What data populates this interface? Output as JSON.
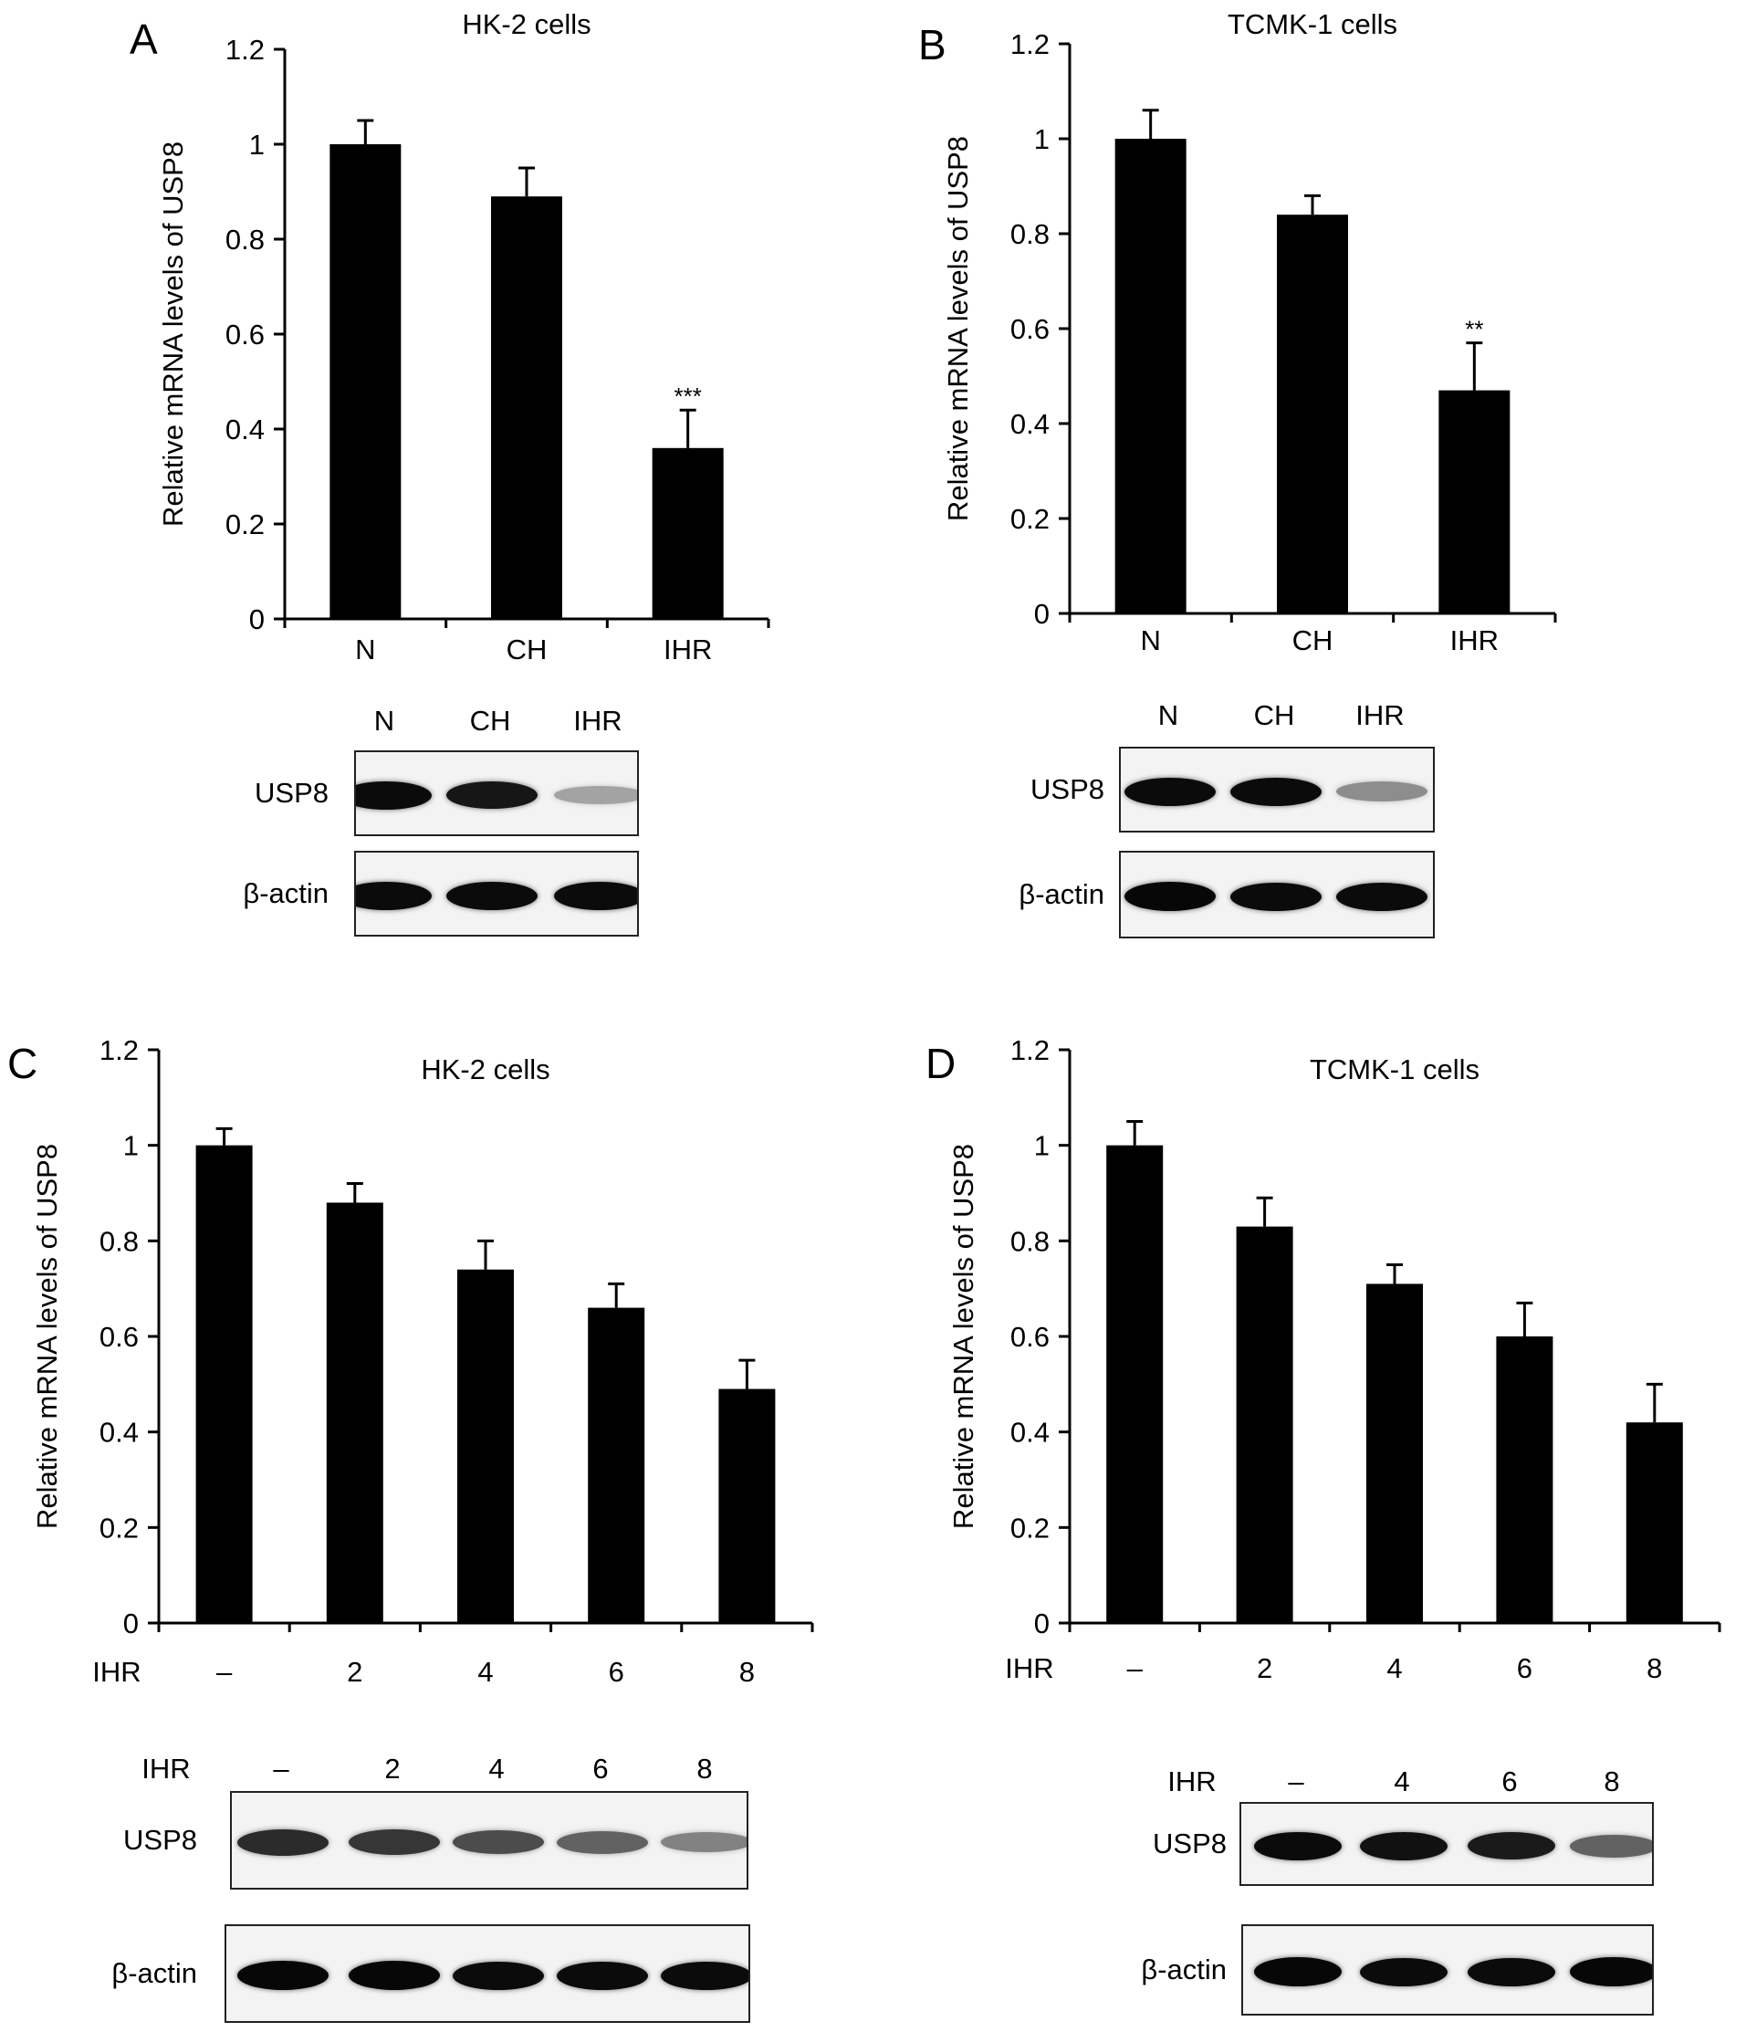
{
  "panels": [
    {
      "letter": "A",
      "chart_data": {
        "type": "bar",
        "title": "HK-2 cells",
        "ylabel": "Relative mRNA levels of USP8",
        "xlabel": "",
        "x_prefix": "",
        "categories": [
          "N",
          "CH",
          "IHR"
        ],
        "values": [
          1.0,
          0.89,
          0.36
        ],
        "errors": [
          0.05,
          0.06,
          0.08
        ],
        "significance": [
          "",
          "",
          "***"
        ],
        "ylim": [
          0,
          1.2
        ],
        "yticks": [
          "0",
          "0.2",
          "0.4",
          "0.6",
          "0.8",
          "1",
          "1.2"
        ],
        "grid": false,
        "bar_color": "#000000"
      },
      "blot": {
        "header_prefix": "",
        "lanes": [
          "N",
          "CH",
          "IHR"
        ],
        "rows": [
          {
            "label": "USP8",
            "intensity": [
              0.95,
              0.9,
              0.25
            ]
          },
          {
            "label": "β-actin",
            "intensity": [
              0.95,
              0.95,
              0.95
            ]
          }
        ]
      }
    },
    {
      "letter": "B",
      "chart_data": {
        "type": "bar",
        "title": "TCMK-1 cells",
        "ylabel": "Relative mRNA levels of USP8",
        "xlabel": "",
        "x_prefix": "",
        "categories": [
          "N",
          "CH",
          "IHR"
        ],
        "values": [
          1.0,
          0.84,
          0.47
        ],
        "errors": [
          0.06,
          0.04,
          0.1
        ],
        "significance": [
          "",
          "",
          "**"
        ],
        "ylim": [
          0,
          1.2
        ],
        "yticks": [
          "0",
          "0.2",
          "0.4",
          "0.6",
          "0.8",
          "1",
          "1.2"
        ],
        "grid": false,
        "bar_color": "#000000"
      },
      "blot": {
        "header_prefix": "",
        "lanes": [
          "N",
          "CH",
          "IHR"
        ],
        "rows": [
          {
            "label": "USP8",
            "intensity": [
              0.95,
              0.95,
              0.35
            ]
          },
          {
            "label": "β-actin",
            "intensity": [
              0.97,
              0.95,
              0.95
            ]
          }
        ]
      }
    },
    {
      "letter": "C",
      "chart_data": {
        "type": "bar",
        "title": "HK-2 cells",
        "ylabel": "Relative mRNA levels of USP8",
        "xlabel": "",
        "x_prefix": "IHR",
        "categories": [
          "–",
          "2",
          "4",
          "6",
          "8"
        ],
        "values": [
          1.0,
          0.88,
          0.74,
          0.66,
          0.49
        ],
        "errors": [
          0.035,
          0.04,
          0.06,
          0.05,
          0.06
        ],
        "significance": [
          "",
          "",
          "",
          "",
          ""
        ],
        "ylim": [
          0,
          1.2
        ],
        "yticks": [
          "0",
          "0.2",
          "0.4",
          "0.6",
          "0.8",
          "1",
          "1.2"
        ],
        "grid": false,
        "bar_color": "#000000"
      },
      "blot": {
        "header_prefix": "IHR",
        "lanes": [
          "–",
          "2",
          "4",
          "6",
          "8"
        ],
        "rows": [
          {
            "label": "USP8",
            "intensity": [
              0.8,
              0.75,
              0.65,
              0.55,
              0.4
            ]
          },
          {
            "label": "β-actin",
            "intensity": [
              0.97,
              0.97,
              0.95,
              0.95,
              0.95
            ]
          }
        ]
      }
    },
    {
      "letter": "D",
      "chart_data": {
        "type": "bar",
        "title": "TCMK-1 cells",
        "ylabel": "Relative mRNA levels of USP8",
        "xlabel": "",
        "x_prefix": "IHR",
        "categories": [
          "–",
          "2",
          "4",
          "6",
          "8"
        ],
        "values": [
          1.0,
          0.83,
          0.71,
          0.6,
          0.42
        ],
        "errors": [
          0.05,
          0.06,
          0.04,
          0.07,
          0.08
        ],
        "significance": [
          "",
          "",
          "",
          "",
          ""
        ],
        "ylim": [
          0,
          1.2
        ],
        "yticks": [
          "0",
          "0.2",
          "0.4",
          "0.6",
          "0.8",
          "1",
          "1.2"
        ],
        "grid": false,
        "bar_color": "#000000"
      },
      "blot": {
        "header_prefix": "IHR",
        "lanes": [
          "–",
          "4",
          "6",
          "8"
        ],
        "rows": [
          {
            "label": "USP8",
            "intensity": [
              0.95,
              0.92,
              0.88,
              0.55
            ]
          },
          {
            "label": "β-actin",
            "intensity": [
              0.97,
              0.95,
              0.95,
              0.97
            ]
          }
        ]
      }
    }
  ]
}
